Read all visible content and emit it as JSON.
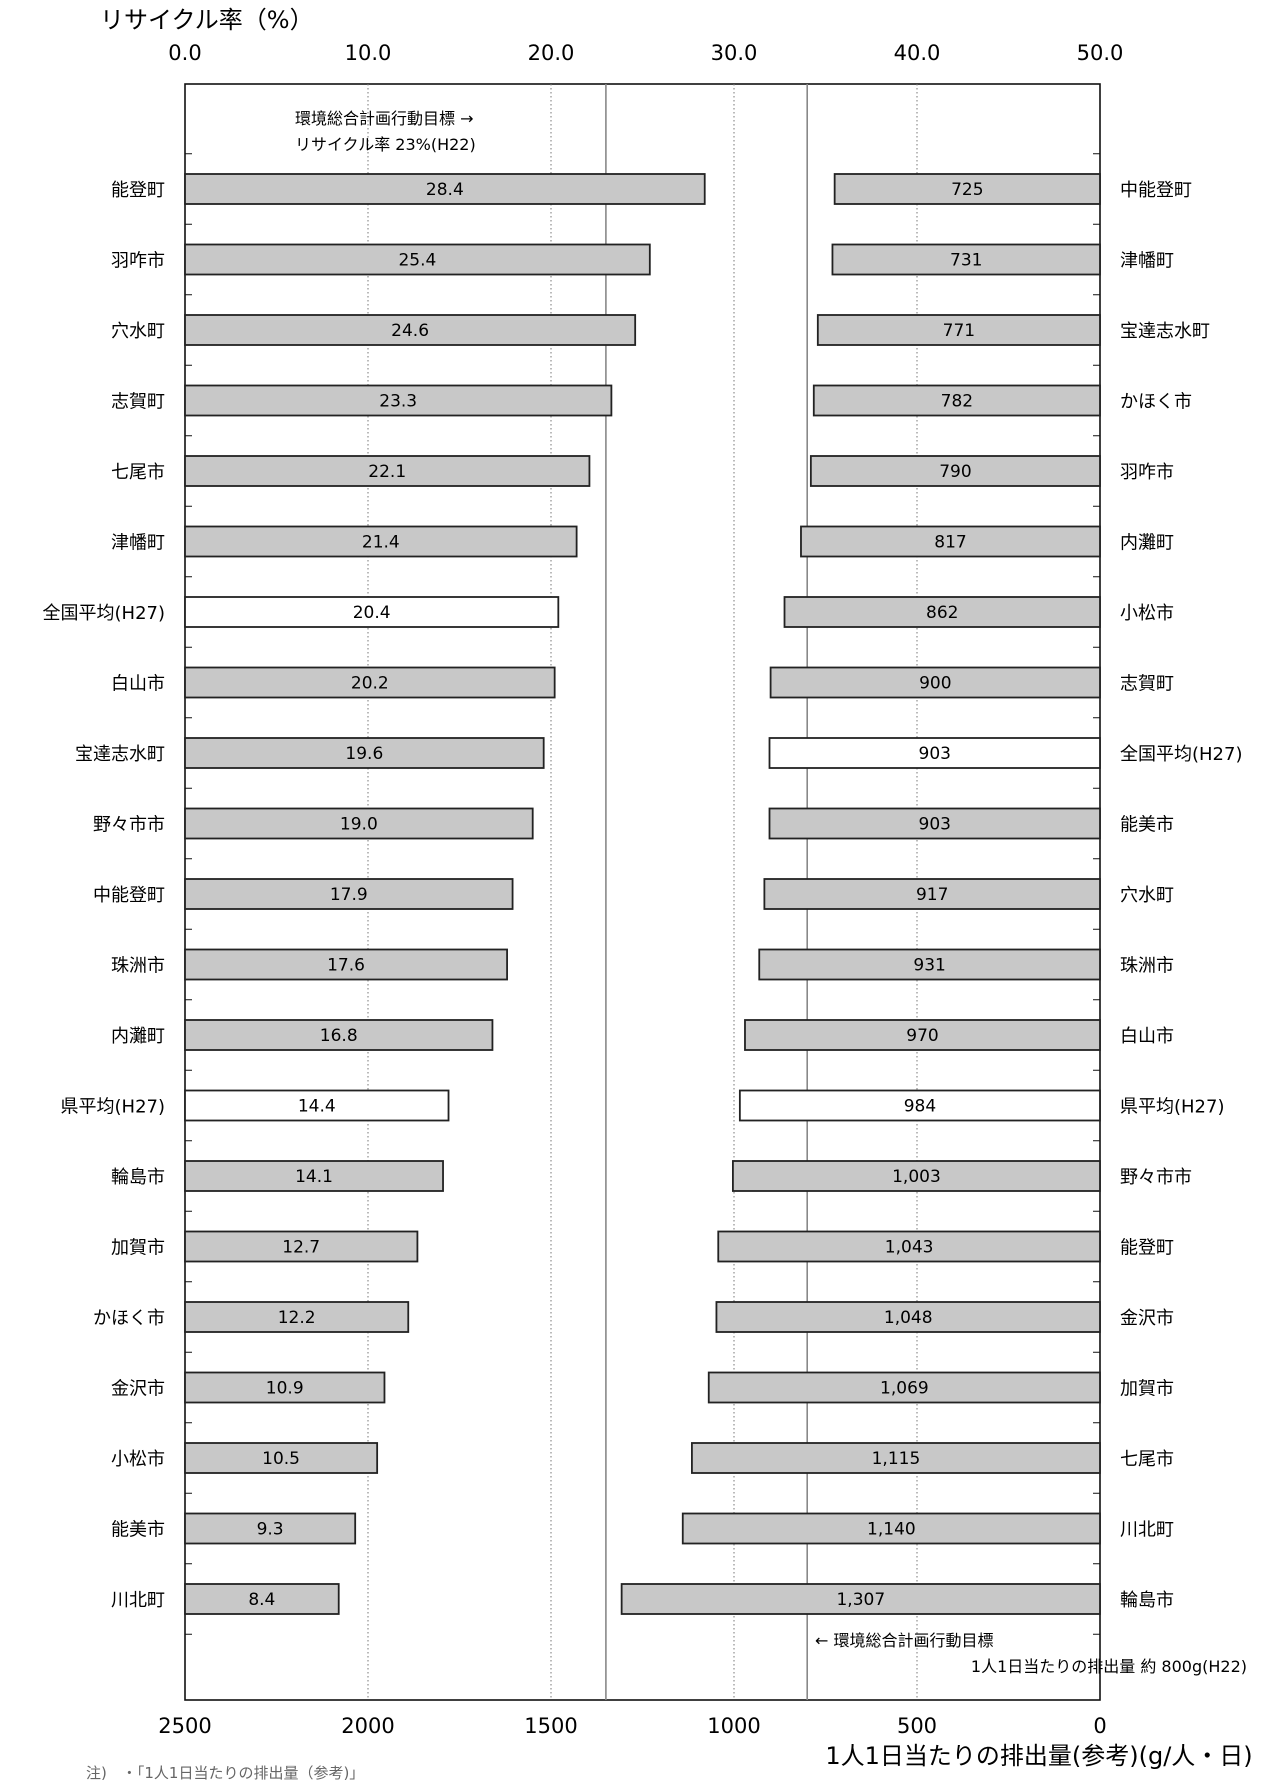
{
  "chart_data": [
    {
      "type": "bar",
      "orientation": "horizontal",
      "axis_title": "リサイクル率（%）",
      "x_ticks": [
        "0.0",
        "10.0",
        "20.0",
        "30.0",
        "40.0",
        "50.0"
      ],
      "xlim": [
        0,
        50
      ],
      "grid": "vertical dotted",
      "target": {
        "value": 23,
        "label_line1": "環境総合計画行動目標 →",
        "label_line2": "リサイクル率 23%(H22)"
      },
      "categories": [
        "能登町",
        "羽咋市",
        "穴水町",
        "志賀町",
        "七尾市",
        "津幡町",
        "全国平均(H27)",
        "白山市",
        "宝達志水町",
        "野々市市",
        "中能登町",
        "珠洲市",
        "内灘町",
        "県平均(H27)",
        "輪島市",
        "加賀市",
        "かほく市",
        "金沢市",
        "小松市",
        "能美市",
        "川北町"
      ],
      "values": [
        28.4,
        25.4,
        24.6,
        23.3,
        22.1,
        21.4,
        20.4,
        20.2,
        19.6,
        19.0,
        17.9,
        17.6,
        16.8,
        14.4,
        14.1,
        12.7,
        12.2,
        10.9,
        10.5,
        9.3,
        8.4
      ],
      "labels": [
        "28.4",
        "25.4",
        "24.6",
        "23.3",
        "22.1",
        "21.4",
        "20.4",
        "20.2",
        "19.6",
        "19.0",
        "17.9",
        "17.6",
        "16.8",
        "14.4",
        "14.1",
        "12.7",
        "12.2",
        "10.9",
        "10.5",
        "9.3",
        "8.4"
      ],
      "highlighted": [
        "全国平均(H27)",
        "県平均(H27)"
      ]
    },
    {
      "type": "bar",
      "orientation": "horizontal",
      "axis_title": "1人1日当たりの排出量(参考)(g/人・日)",
      "x_ticks": [
        "2500",
        "2000",
        "1500",
        "1000",
        "500",
        "0"
      ],
      "xlim": [
        2500,
        0
      ],
      "grid": "vertical dotted",
      "target": {
        "value": 800,
        "label_line1": "← 環境総合計画行動目標",
        "label_line2": "1人1日当たりの排出量 約 800g(H22)"
      },
      "categories": [
        "中能登町",
        "津幡町",
        "宝達志水町",
        "かほく市",
        "羽咋市",
        "内灘町",
        "小松市",
        "志賀町",
        "全国平均(H27)",
        "能美市",
        "穴水町",
        "珠洲市",
        "白山市",
        "県平均(H27)",
        "野々市市",
        "能登町",
        "金沢市",
        "加賀市",
        "七尾市",
        "川北町",
        "輪島市"
      ],
      "values": [
        725,
        731,
        771,
        782,
        790,
        817,
        862,
        900,
        903,
        903,
        917,
        931,
        970,
        984,
        1003,
        1043,
        1048,
        1069,
        1115,
        1140,
        1307
      ],
      "labels": [
        "725",
        "731",
        "771",
        "782",
        "790",
        "817",
        "862",
        "900",
        "903",
        "903",
        "917",
        "931",
        "970",
        "984",
        "1,003",
        "1,043",
        "1,048",
        "1,069",
        "1,115",
        "1,140",
        "1,307"
      ],
      "highlighted": [
        "全国平均(H27)",
        "県平均(H27)"
      ]
    }
  ],
  "note": "注)　・「1人1日当たりの排出量（参考)」",
  "colors": {
    "bar": "#c8c8c8",
    "highlight_bar": "#ffffff",
    "bar_stroke": "#222222",
    "grid": "#777777",
    "target_line": "#888888"
  }
}
